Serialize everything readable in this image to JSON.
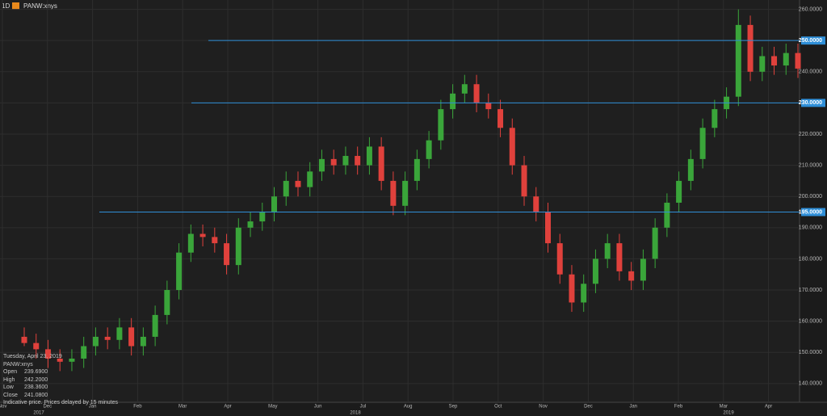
{
  "header": {
    "interval": "1D",
    "symbol": "PANW:xnys"
  },
  "info": {
    "date": "Tuesday, April 23, 2019",
    "symbol": "PANW:xnys",
    "rows": [
      [
        "Open",
        "239.6900"
      ],
      [
        "High",
        "242.2000"
      ],
      [
        "Low",
        "238.3600"
      ],
      [
        "Close",
        "241.0800"
      ]
    ],
    "note": "Indicative price. Prices delayed by 15 minutes"
  },
  "chart_data": {
    "type": "candlestick",
    "categories": [
      "Nov",
      "Dec",
      "Jan",
      "Feb",
      "Mar",
      "Apr",
      "May",
      "Jun",
      "Jul",
      "Aug",
      "Sep",
      "Oct",
      "Nov",
      "Dec",
      "Jan",
      "Feb",
      "Mar",
      "Apr"
    ],
    "year_labels": [
      "2017",
      "2018",
      "2019"
    ],
    "up_color": "#3aa53a",
    "down_color": "#e0413c",
    "ylim": [
      134,
      263
    ],
    "yticks": [
      {
        "value": 140,
        "label": "140.0000"
      },
      {
        "value": 150,
        "label": "150.0000"
      },
      {
        "value": 160,
        "label": "160.0000"
      },
      {
        "value": 170,
        "label": "170.0000"
      },
      {
        "value": 180,
        "label": "180.0000"
      },
      {
        "value": 190,
        "label": "190.0000"
      },
      {
        "value": 200,
        "label": "200.0000"
      },
      {
        "value": 210,
        "label": "210.0000"
      },
      {
        "value": 220,
        "label": "220.0000"
      },
      {
        "value": 230,
        "label": "230.0000"
      },
      {
        "value": 240,
        "label": "240.0000"
      },
      {
        "value": 250,
        "label": "250.0000"
      },
      {
        "value": 260,
        "label": "260.0000"
      }
    ],
    "hlines": [
      {
        "value": 250,
        "label": "250.0000"
      },
      {
        "value": 230,
        "label": "230.0000"
      },
      {
        "value": 195,
        "label": "195.0000"
      }
    ],
    "hline_color": "#2f8fd8",
    "grid": true,
    "open": [
      155,
      153,
      151,
      148,
      147,
      148,
      152,
      155,
      154,
      158,
      152,
      155,
      162,
      170,
      182,
      188,
      187,
      185,
      178,
      190,
      192,
      195,
      200,
      205,
      203,
      208,
      212,
      210,
      213,
      210,
      216,
      205,
      197,
      205,
      212,
      218,
      228,
      233,
      236,
      230,
      228,
      222,
      210,
      200,
      195,
      185,
      175,
      166,
      172,
      180,
      185,
      176,
      173,
      180,
      190,
      198,
      205,
      212,
      222,
      228,
      232,
      255,
      240,
      245,
      242,
      246
    ],
    "high": [
      158,
      156,
      154,
      151,
      151,
      155,
      158,
      158,
      161,
      161,
      158,
      165,
      173,
      185,
      191,
      191,
      190,
      188,
      193,
      195,
      198,
      203,
      208,
      208,
      211,
      215,
      215,
      216,
      216,
      219,
      219,
      208,
      208,
      215,
      221,
      231,
      236,
      239,
      239,
      233,
      231,
      225,
      213,
      203,
      198,
      188,
      178,
      175,
      183,
      188,
      188,
      179,
      183,
      193,
      201,
      208,
      215,
      225,
      231,
      235,
      260,
      258,
      248,
      248,
      249,
      249
    ],
    "low": [
      152,
      148,
      145,
      144,
      144,
      145,
      149,
      151,
      151,
      149,
      149,
      152,
      159,
      167,
      179,
      184,
      182,
      175,
      175,
      187,
      189,
      192,
      197,
      200,
      200,
      205,
      207,
      207,
      207,
      207,
      202,
      194,
      194,
      202,
      209,
      215,
      225,
      230,
      227,
      225,
      219,
      207,
      197,
      192,
      182,
      172,
      163,
      163,
      169,
      177,
      173,
      170,
      170,
      177,
      187,
      195,
      202,
      209,
      219,
      225,
      229,
      237,
      237,
      239,
      239,
      238
    ],
    "close": [
      153,
      151,
      148,
      147,
      148,
      152,
      155,
      154,
      158,
      152,
      155,
      162,
      170,
      182,
      188,
      187,
      185,
      178,
      190,
      192,
      195,
      200,
      205,
      203,
      208,
      212,
      210,
      213,
      210,
      216,
      205,
      197,
      205,
      212,
      218,
      228,
      233,
      236,
      230,
      228,
      222,
      210,
      200,
      195,
      185,
      175,
      166,
      172,
      180,
      185,
      176,
      173,
      180,
      190,
      198,
      205,
      212,
      222,
      228,
      232,
      255,
      240,
      245,
      242,
      246,
      241
    ]
  }
}
